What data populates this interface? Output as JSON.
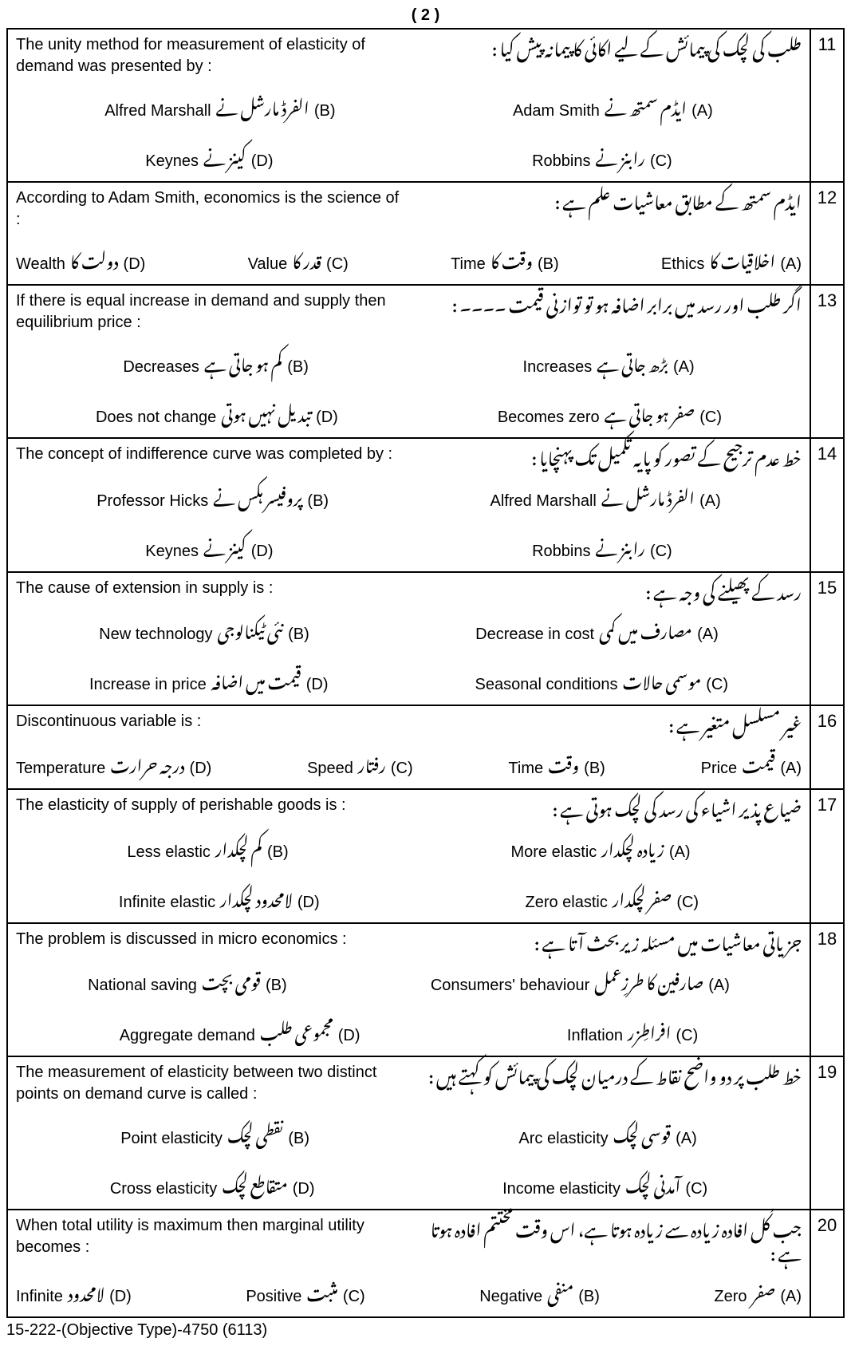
{
  "page_number": "( 2 )",
  "footer": "15-222-(Objective Type)-4750  (6113)",
  "questions": [
    {
      "num": "11",
      "stem_en": "The unity method for measurement of elasticity of demand was presented by :",
      "stem_ur": "طلب کی لچک کی پیمائش کے لیے اکائی کا پیمانہ پیش کیا :",
      "layout": "2x2",
      "opts": [
        {
          "l": "(A)",
          "ur": "ایڈم سمتھ نے",
          "en": "Adam Smith"
        },
        {
          "l": "(B)",
          "ur": "الفرڈ مارشل نے",
          "en": "Alfred Marshall"
        },
        {
          "l": "(C)",
          "ur": "رابنز نے",
          "en": "Robbins"
        },
        {
          "l": "(D)",
          "ur": "کینز نے",
          "en": "Keynes"
        }
      ]
    },
    {
      "num": "12",
      "stem_en": "According to Adam Smith,  economics is the science of :",
      "stem_ur": "ایڈم سمتھ کے مطابق معاشیات علم ہے :",
      "layout": "1x4",
      "opts": [
        {
          "l": "(A)",
          "ur": "اخلاقیات کا",
          "en": "Ethics"
        },
        {
          "l": "(B)",
          "ur": "وقت کا",
          "en": "Time"
        },
        {
          "l": "(C)",
          "ur": "قدر کا",
          "en": "Value"
        },
        {
          "l": "(D)",
          "ur": "دولت کا",
          "en": "Wealth"
        }
      ]
    },
    {
      "num": "13",
      "stem_en": "If there is equal increase in demand and supply then equilibrium price :",
      "stem_ur": "اگر طلب اور رسد میں برابر اضافہ ہو تو توازنی قیمت ۔۔۔۔ :",
      "layout": "2x2",
      "opts": [
        {
          "l": "(A)",
          "ur": "بڑھ جاتی ہے",
          "en": "Increases"
        },
        {
          "l": "(B)",
          "ur": "کم ہو جاتی ہے",
          "en": "Decreases"
        },
        {
          "l": "(C)",
          "ur": "صفر ہو جاتی ہے",
          "en": "Becomes zero"
        },
        {
          "l": "(D)",
          "ur": "تبدیل نہیں ہوتی",
          "en": "Does not change"
        }
      ]
    },
    {
      "num": "14",
      "stem_en": "The concept of indifference curve was completed by :",
      "stem_ur": "خط عدم ترجیح کے تصور کو پایہ تکمیل تک پہنچایا :",
      "layout": "2x2",
      "opts": [
        {
          "l": "(A)",
          "ur": "الفرڈ مارشل نے",
          "en": "Alfred Marshall"
        },
        {
          "l": "(B)",
          "ur": "پروفیسر ہکس نے",
          "en": "Professor Hicks"
        },
        {
          "l": "(C)",
          "ur": "رابنز نے",
          "en": "Robbins"
        },
        {
          "l": "(D)",
          "ur": "کینز نے",
          "en": "Keynes"
        }
      ]
    },
    {
      "num": "15",
      "stem_en": "The cause of extension in supply is :",
      "stem_ur": "رسد کے پھیلنے کی وجہ ہے :",
      "layout": "2x2",
      "opts": [
        {
          "l": "(A)",
          "ur": "مصارف میں کمی",
          "en": "Decrease in cost"
        },
        {
          "l": "(B)",
          "ur": "نئی ٹیکنالوجی",
          "en": "New technology"
        },
        {
          "l": "(C)",
          "ur": "موسمی حالات",
          "en": "Seasonal  conditions"
        },
        {
          "l": "(D)",
          "ur": "قیمت میں اضافہ",
          "en": "Increase in price"
        }
      ]
    },
    {
      "num": "16",
      "stem_en": "Discontinuous variable is :",
      "stem_ur": "غیر مسلسل متغیر ہے :",
      "layout": "1x4",
      "opts": [
        {
          "l": "(A)",
          "ur": "قیمت",
          "en": "Price"
        },
        {
          "l": "(B)",
          "ur": "وقت",
          "en": "Time"
        },
        {
          "l": "(C)",
          "ur": "رفتار",
          "en": "Speed"
        },
        {
          "l": "(D)",
          "ur": "درجہ حرارت",
          "en": "Temperature"
        }
      ]
    },
    {
      "num": "17",
      "stem_en": "The elasticity of supply of perishable goods is :",
      "stem_ur": "ضیاع پذیر اشیاء کی رسد کی لچک ہوتی ہے :",
      "layout": "2x2",
      "opts": [
        {
          "l": "(A)",
          "ur": "زیادہ لچکدار",
          "en": "More elastic"
        },
        {
          "l": "(B)",
          "ur": "کم لچکدار",
          "en": "Less elastic"
        },
        {
          "l": "(C)",
          "ur": "صفر لچکدار",
          "en": "Zero elastic"
        },
        {
          "l": "(D)",
          "ur": "لامحدود لچکدار",
          "en": "Infinite elastic"
        }
      ]
    },
    {
      "num": "18",
      "stem_en": "The problem is discussed in micro economics :",
      "stem_ur": "جزیاتی معاشیات میں مسئلہ زیربحث آتا ہے :",
      "layout": "2x2",
      "opts": [
        {
          "l": "(A)",
          "ur": "صارفین کا طرزِعمل",
          "en": "Consumers' behaviour"
        },
        {
          "l": "(B)",
          "ur": "قومی بچت",
          "en": "National saving"
        },
        {
          "l": "(C)",
          "ur": "افراطِزر",
          "en": "Inflation"
        },
        {
          "l": "(D)",
          "ur": "مجموعی طلب",
          "en": "Aggregate demand"
        }
      ]
    },
    {
      "num": "19",
      "stem_en": "The measurement of elasticity between two distinct points on demand curve is called :",
      "stem_ur": "خط طلب پر دو واضح نقاط کے درمیان لچک کی پیمائش کو کہتے ہیں :",
      "layout": "2x2",
      "opts": [
        {
          "l": "(A)",
          "ur": "قوسی لچک",
          "en": "Arc elasticity"
        },
        {
          "l": "(B)",
          "ur": "نقطی لچک",
          "en": "Point elasticity"
        },
        {
          "l": "(C)",
          "ur": "آمدنی لچک",
          "en": "Income elasticity"
        },
        {
          "l": "(D)",
          "ur": "متقاطع لچک",
          "en": "Cross elasticity"
        }
      ]
    },
    {
      "num": "20",
      "stem_en": "When total utility is maximum then marginal utility becomes :",
      "stem_ur": "جب کُل افادہ زیادہ سے زیادہ ہوتا ہے، اس وقت مختتم افادہ ہوتا ہے :",
      "layout": "1x4",
      "opts": [
        {
          "l": "(A)",
          "ur": "صفر",
          "en": "Zero"
        },
        {
          "l": "(B)",
          "ur": "منفی",
          "en": "Negative"
        },
        {
          "l": "(C)",
          "ur": "مثبت",
          "en": "Positive"
        },
        {
          "l": "(D)",
          "ur": "لامحدود",
          "en": "Infinite"
        }
      ]
    }
  ]
}
